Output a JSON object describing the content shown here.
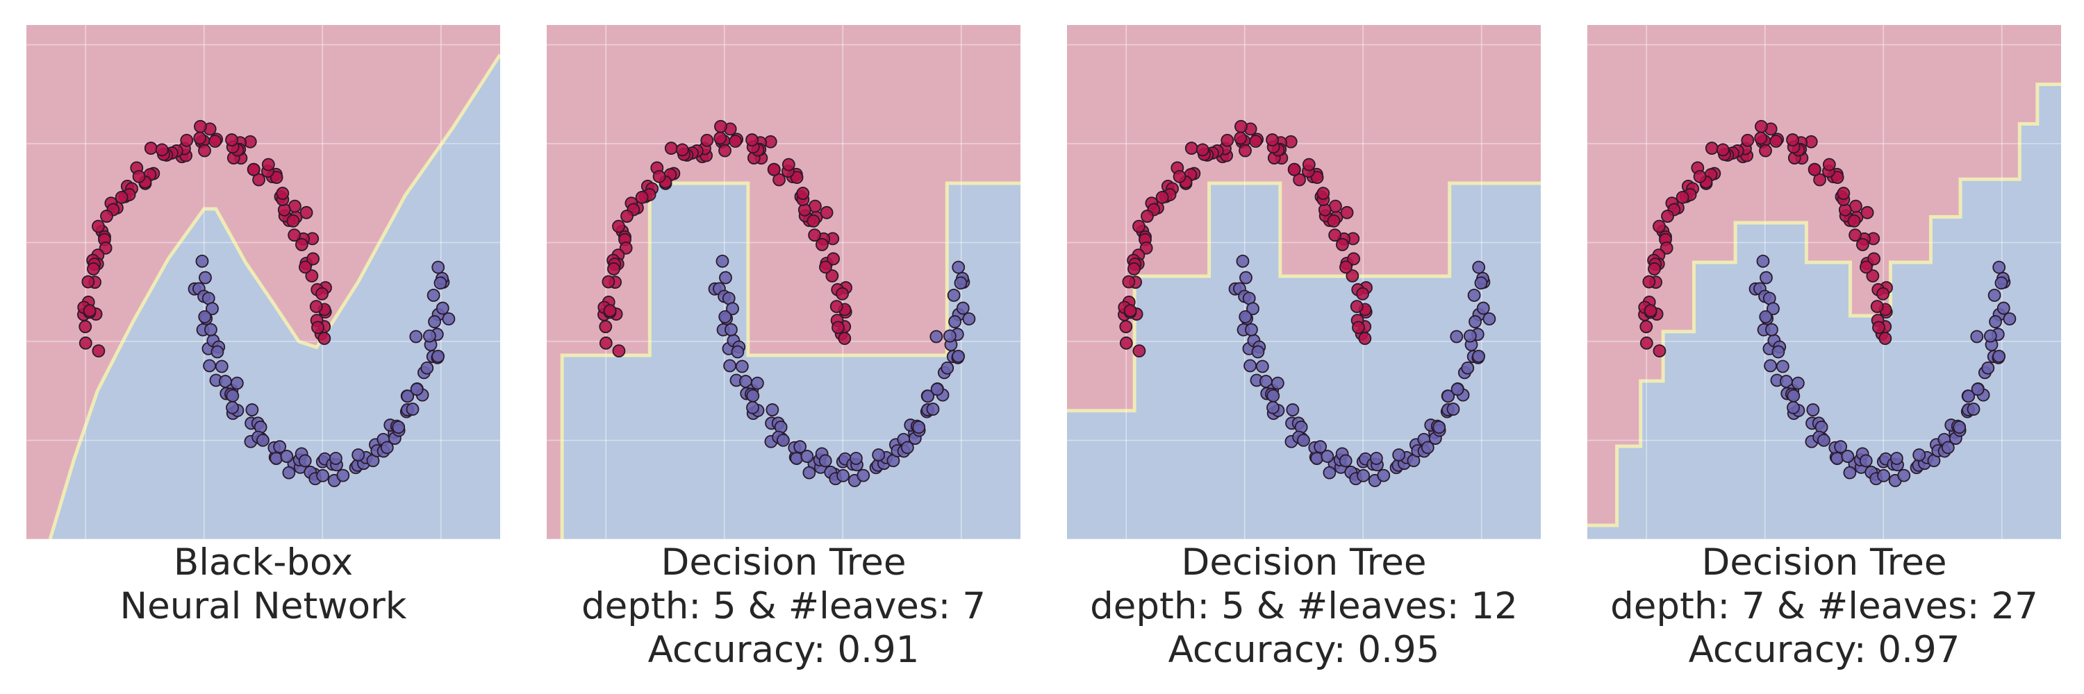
{
  "colors": {
    "class_a_region": "#e0aebb",
    "class_b_region": "#b7c8e0",
    "boundary": "#f3f0b4",
    "class_a_point": "#b5154a",
    "class_b_point": "#6a63ad",
    "point_edge": "#2a1a2a",
    "grid": "#ffffff"
  },
  "chart_data": [
    {
      "type": "scatter",
      "caption_lines": [
        "Black-box",
        "Neural Network"
      ],
      "xlim": [
        -1.5,
        2.5
      ],
      "ylim": [
        -1.0,
        1.6
      ],
      "grid": true,
      "boundary": [
        [
          -1.3,
          -1.0
        ],
        [
          -1.1,
          -0.6
        ],
        [
          -0.9,
          -0.25
        ],
        [
          -0.6,
          0.1
        ],
        [
          -0.3,
          0.42
        ],
        [
          0.0,
          0.67
        ],
        [
          0.1,
          0.67
        ],
        [
          0.35,
          0.4
        ],
        [
          0.6,
          0.18
        ],
        [
          0.8,
          0.0
        ],
        [
          0.95,
          -0.03
        ],
        [
          1.3,
          0.3
        ],
        [
          1.7,
          0.74
        ],
        [
          2.1,
          1.08
        ],
        [
          2.5,
          1.45
        ]
      ]
    },
    {
      "type": "scatter",
      "caption_lines": [
        "Decision Tree",
        "depth: 5 & #leaves: 7",
        "Accuracy: 0.91"
      ],
      "xlim": [
        -1.5,
        2.5
      ],
      "ylim": [
        -1.0,
        1.6
      ],
      "grid": true,
      "boundary": [
        [
          -1.37,
          -1.0
        ],
        [
          -1.37,
          -0.07
        ],
        [
          -0.63,
          -0.07
        ],
        [
          -0.63,
          0.8
        ],
        [
          0.2,
          0.8
        ],
        [
          0.2,
          -0.07
        ],
        [
          1.88,
          -0.07
        ],
        [
          1.88,
          0.8
        ],
        [
          2.5,
          0.8
        ]
      ]
    },
    {
      "type": "scatter",
      "caption_lines": [
        "Decision Tree",
        "depth: 5 & #leaves: 12",
        "Accuracy: 0.95"
      ],
      "xlim": [
        -1.5,
        2.5
      ],
      "ylim": [
        -1.0,
        1.6
      ],
      "grid": true,
      "boundary": [
        [
          -1.5,
          -0.35
        ],
        [
          -0.93,
          -0.35
        ],
        [
          -0.93,
          0.33
        ],
        [
          -0.3,
          0.33
        ],
        [
          -0.3,
          0.8
        ],
        [
          0.3,
          0.8
        ],
        [
          0.3,
          0.33
        ],
        [
          1.3,
          0.33
        ],
        [
          1.3,
          0.33
        ],
        [
          1.73,
          0.33
        ],
        [
          1.73,
          0.8
        ],
        [
          2.5,
          0.8
        ]
      ]
    },
    {
      "type": "scatter",
      "caption_lines": [
        "Decision Tree",
        "depth: 7 & #leaves: 27",
        "Accuracy: 0.97"
      ],
      "xlim": [
        -1.5,
        2.5
      ],
      "ylim": [
        -1.0,
        1.6
      ],
      "grid": true,
      "boundary": [
        [
          -1.5,
          -0.93
        ],
        [
          -1.25,
          -0.93
        ],
        [
          -1.25,
          -0.53
        ],
        [
          -1.05,
          -0.53
        ],
        [
          -1.05,
          -0.2
        ],
        [
          -0.86,
          -0.2
        ],
        [
          -0.86,
          0.05
        ],
        [
          -0.6,
          0.05
        ],
        [
          -0.6,
          0.4
        ],
        [
          -0.25,
          0.4
        ],
        [
          -0.25,
          0.6
        ],
        [
          0.35,
          0.6
        ],
        [
          0.35,
          0.4
        ],
        [
          0.72,
          0.4
        ],
        [
          0.72,
          0.13
        ],
        [
          1.06,
          0.13
        ],
        [
          1.06,
          0.4
        ],
        [
          1.4,
          0.4
        ],
        [
          1.4,
          0.63
        ],
        [
          1.65,
          0.63
        ],
        [
          1.65,
          0.82
        ],
        [
          2.15,
          0.82
        ],
        [
          2.15,
          1.1
        ],
        [
          2.3,
          1.1
        ],
        [
          2.3,
          1.3
        ],
        [
          2.5,
          1.3
        ]
      ]
    }
  ]
}
